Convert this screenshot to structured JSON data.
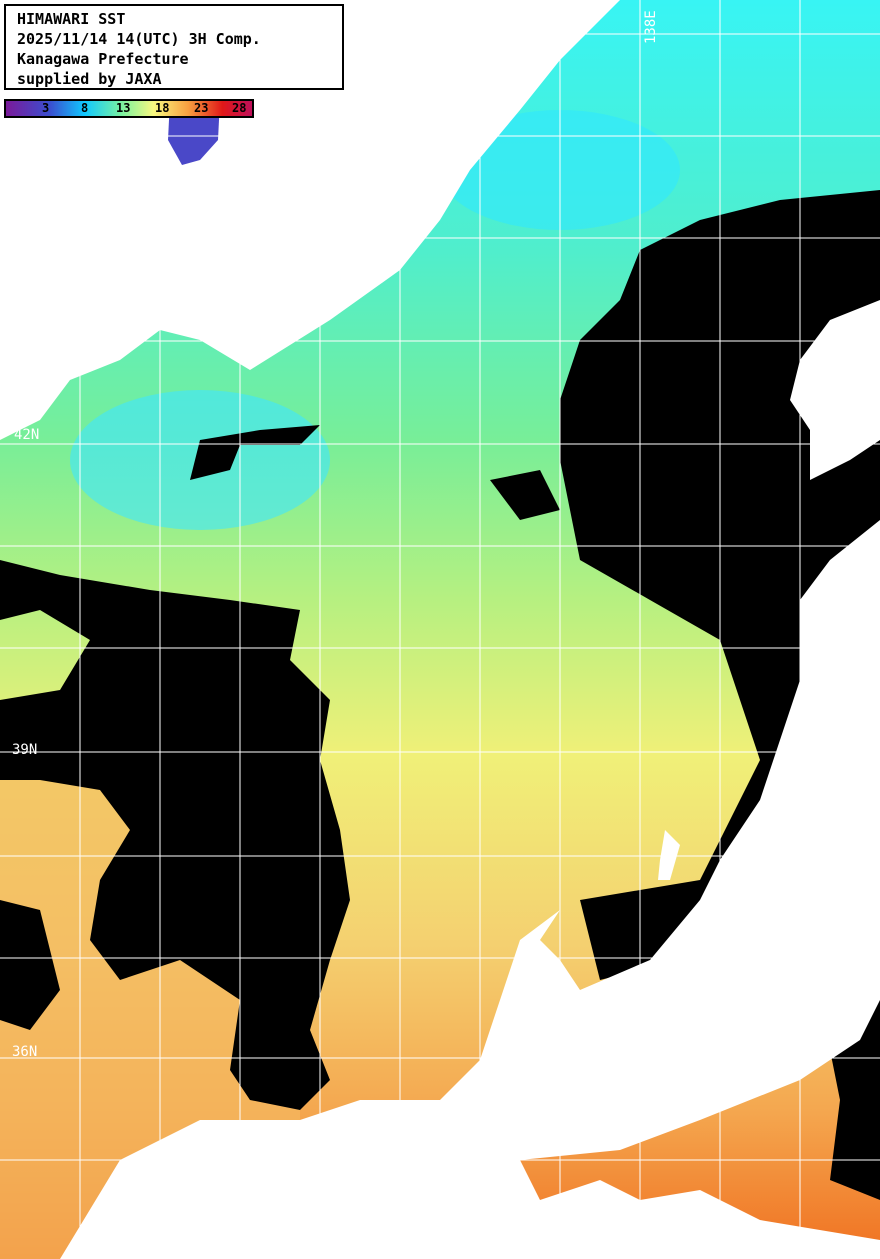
{
  "header": {
    "title": "HIMAWARI SST",
    "datetime": "2025/11/14 14(UTC) 3H Comp.",
    "region": "Kanagawa Prefecture",
    "credit": "supplied by JAXA"
  },
  "colorbar": {
    "ticks": [
      "3",
      "8",
      "13",
      "18",
      "23",
      "28"
    ],
    "colors": [
      "#7a1a9a",
      "#3a4fd0",
      "#10c8ff",
      "#7af2a0",
      "#f8f880",
      "#f8a040",
      "#e01818",
      "#c0105a"
    ]
  },
  "grid": {
    "lat_labels": [
      "42N",
      "39N",
      "36N"
    ],
    "lon_labels": [
      "138E"
    ]
  },
  "colors": {
    "land": "#ffffff",
    "cloud": "#000000",
    "grid": "#ffffff"
  }
}
